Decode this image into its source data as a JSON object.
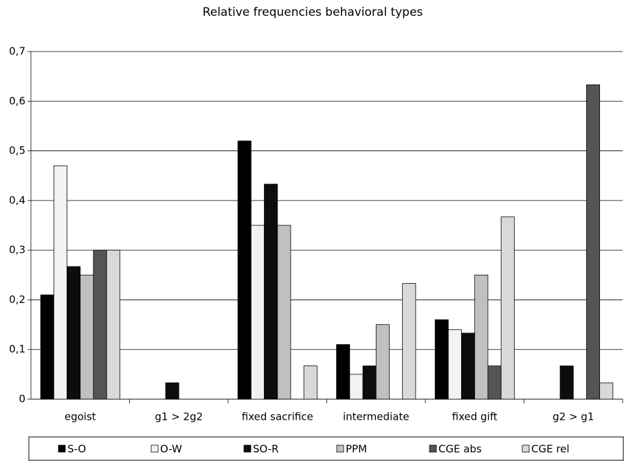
{
  "chart_data": {
    "type": "bar",
    "title": "Relative frequencies behavioral types",
    "categories": [
      "egoist",
      "g1 > 2g2",
      "fixed sacrifice",
      "intermediate",
      "fixed gift",
      "g2 > g1"
    ],
    "series": [
      {
        "name": "S-O",
        "color": "#000000",
        "values": [
          0.21,
          0,
          0.52,
          0.11,
          0.16,
          0
        ]
      },
      {
        "name": "O-W",
        "color": "#f2f2f2",
        "values": [
          0.47,
          0,
          0.35,
          0.05,
          0.14,
          0
        ]
      },
      {
        "name": "SO-R",
        "color": "#0d0d0d",
        "values": [
          0.267,
          0.033,
          0.433,
          0.067,
          0.133,
          0.067
        ]
      },
      {
        "name": "PPM",
        "color": "#c0c0c0",
        "values": [
          0.25,
          0,
          0.35,
          0.15,
          0.25,
          0
        ]
      },
      {
        "name": "CGE abs",
        "color": "#555555",
        "values": [
          0.3,
          0,
          0,
          0,
          0.067,
          0.633
        ]
      },
      {
        "name": "CGE rel",
        "color": "#d9d9d9",
        "values": [
          0.3,
          0,
          0.067,
          0.233,
          0.367,
          0.033
        ]
      }
    ],
    "ylim": [
      0,
      0.7
    ],
    "yticks": [
      0,
      {
        "value": 0.1,
        "label": "0,1"
      },
      {
        "value": 0.2,
        "label": "0,2"
      },
      {
        "value": 0.3,
        "label": "0,3"
      },
      {
        "value": 0.4,
        "label": "0,4"
      },
      {
        "value": 0.5,
        "label": "0,5"
      },
      {
        "value": 0.6,
        "label": "0,6"
      },
      {
        "value": 0.7,
        "label": "0,7"
      }
    ],
    "grid": true,
    "legend": "bottom"
  }
}
